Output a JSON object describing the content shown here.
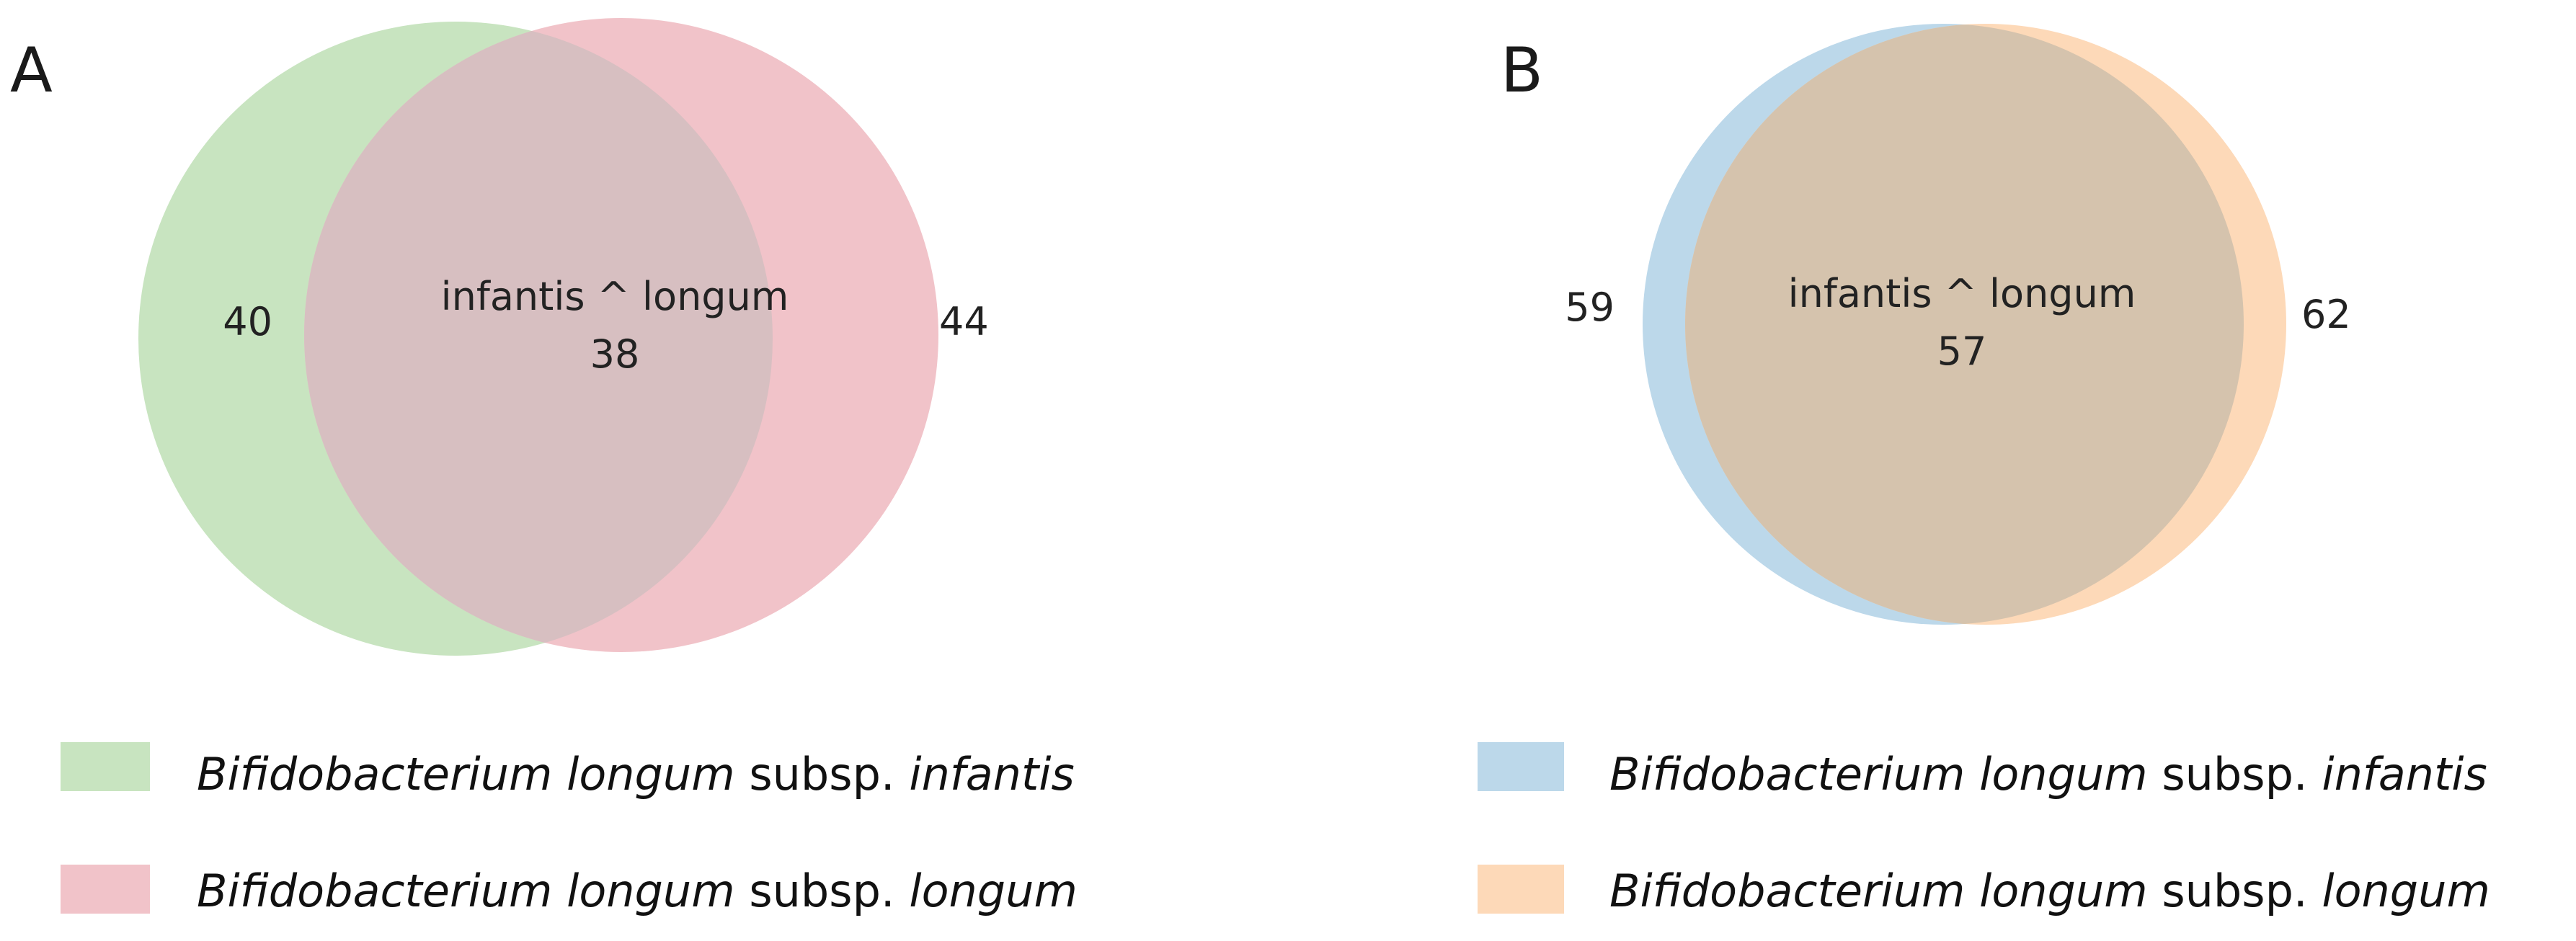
{
  "panels": [
    {
      "letter": "A",
      "venn": {
        "set_a": {
          "count": "40",
          "color": "#c8e4c0"
        },
        "set_b": {
          "count": "44",
          "color": "#f1c3c9"
        },
        "intersection": {
          "label": "infantis ^ longum",
          "count": "38",
          "color": "#d7bfc1"
        }
      },
      "legend": [
        {
          "genus": "Bifidobacterium longum",
          "mid": " subsp. ",
          "subspecies": "infantis",
          "color": "#c8e4c0"
        },
        {
          "genus": "Bifidobacterium longum",
          "mid": " subsp. ",
          "subspecies": "longum",
          "color": "#f1c3c9"
        }
      ]
    },
    {
      "letter": "B",
      "venn": {
        "set_a": {
          "count": "59",
          "color": "#bcd8ea"
        },
        "set_b": {
          "count": "62",
          "color": "#fdd9b8"
        },
        "intersection": {
          "label": "infantis ^ longum",
          "count": "57",
          "color": "#d5c3ad"
        }
      },
      "legend": [
        {
          "genus": "Bifidobacterium longum",
          "mid": " subsp. ",
          "subspecies": "infantis",
          "color": "#bcd8ea"
        },
        {
          "genus": "Bifidobacterium longum",
          "mid": " subsp. ",
          "subspecies": "longum",
          "color": "#fdd9b8"
        }
      ]
    }
  ]
}
